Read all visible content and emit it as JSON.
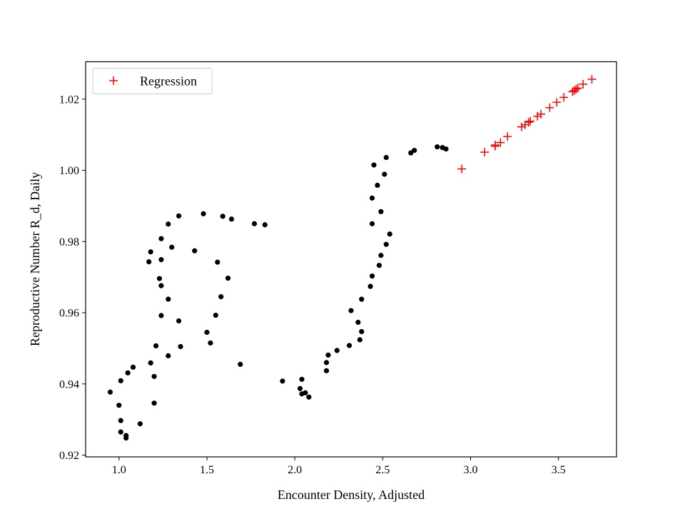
{
  "chart_data": {
    "type": "scatter",
    "title": "",
    "xlabel": "Encounter Density, Adjusted",
    "ylabel": "Reproductive Number R_d, Daily",
    "xlim": [
      0.81,
      3.83
    ],
    "ylim": [
      0.9195,
      1.0305
    ],
    "xticks": [
      1.0,
      1.5,
      2.0,
      2.5,
      3.0,
      3.5
    ],
    "xtick_labels": [
      "1.0",
      "1.5",
      "2.0",
      "2.5",
      "3.0",
      "3.5"
    ],
    "yticks": [
      0.92,
      0.94,
      0.96,
      0.98,
      1.0,
      1.02
    ],
    "ytick_labels": [
      "0.92",
      "0.94",
      "0.96",
      "0.98",
      "1.00",
      "1.02"
    ],
    "grid": false,
    "legend": {
      "position": "top-left",
      "entries": [
        "Regression"
      ]
    },
    "series": [
      {
        "marker": "circle",
        "color": "#000000",
        "points": [
          [
            0.95,
            0.9377
          ],
          [
            1.01,
            0.9409
          ],
          [
            1.05,
            0.9431
          ],
          [
            1.08,
            0.9447
          ],
          [
            1.0,
            0.934
          ],
          [
            1.01,
            0.9297
          ],
          [
            1.01,
            0.9265
          ],
          [
            1.04,
            0.9255
          ],
          [
            1.04,
            0.9248
          ],
          [
            1.12,
            0.9288
          ],
          [
            1.2,
            0.9346
          ],
          [
            1.18,
            0.9459
          ],
          [
            1.2,
            0.9421
          ],
          [
            1.21,
            0.9507
          ],
          [
            1.24,
            0.9592
          ],
          [
            1.28,
            0.9479
          ],
          [
            1.23,
            0.9696
          ],
          [
            1.24,
            0.9676
          ],
          [
            1.28,
            0.9638
          ],
          [
            1.34,
            0.9577
          ],
          [
            1.35,
            0.9505
          ],
          [
            1.17,
            0.9743
          ],
          [
            1.18,
            0.9771
          ],
          [
            1.24,
            0.9749
          ],
          [
            1.24,
            0.9808
          ],
          [
            1.3,
            0.9784
          ],
          [
            1.28,
            0.9849
          ],
          [
            1.34,
            0.9872
          ],
          [
            1.43,
            0.9774
          ],
          [
            1.48,
            0.9878
          ],
          [
            1.5,
            0.9545
          ],
          [
            1.52,
            0.9515
          ],
          [
            1.55,
            0.9593
          ],
          [
            1.56,
            0.9742
          ],
          [
            1.58,
            0.9645
          ],
          [
            1.59,
            0.9871
          ],
          [
            1.62,
            0.9697
          ],
          [
            1.64,
            0.9863
          ],
          [
            1.69,
            0.9455
          ],
          [
            1.77,
            0.985
          ],
          [
            1.83,
            0.9847
          ],
          [
            1.93,
            0.9408
          ],
          [
            2.03,
            0.9387
          ],
          [
            2.04,
            0.9413
          ],
          [
            2.04,
            0.9372
          ],
          [
            2.06,
            0.9375
          ],
          [
            2.08,
            0.9363
          ],
          [
            2.18,
            0.9437
          ],
          [
            2.18,
            0.946
          ],
          [
            2.19,
            0.9481
          ],
          [
            2.24,
            0.9494
          ],
          [
            2.31,
            0.9508
          ],
          [
            2.32,
            0.9606
          ],
          [
            2.36,
            0.9573
          ],
          [
            2.37,
            0.9524
          ],
          [
            2.38,
            0.9547
          ],
          [
            2.38,
            0.9638
          ],
          [
            2.43,
            0.9674
          ],
          [
            2.44,
            0.9703
          ],
          [
            2.48,
            0.9733
          ],
          [
            2.49,
            0.9761
          ],
          [
            2.52,
            0.9792
          ],
          [
            2.54,
            0.9821
          ],
          [
            2.44,
            0.985
          ],
          [
            2.49,
            0.9884
          ],
          [
            2.44,
            0.9922
          ],
          [
            2.47,
            0.9958
          ],
          [
            2.51,
            0.9989
          ],
          [
            2.45,
            1.0015
          ],
          [
            2.52,
            1.0036
          ],
          [
            2.66,
            1.0049
          ],
          [
            2.68,
            1.0056
          ],
          [
            2.81,
            1.0066
          ],
          [
            2.84,
            1.0064
          ],
          [
            2.86,
            1.006
          ]
        ]
      },
      {
        "name": "Regression",
        "marker": "plus",
        "color": "#ff0000",
        "points": [
          [
            2.95,
            1.0004
          ],
          [
            3.08,
            1.0051
          ],
          [
            3.14,
            1.0068
          ],
          [
            3.14,
            1.0071
          ],
          [
            3.17,
            1.0078
          ],
          [
            3.21,
            1.0095
          ],
          [
            3.29,
            1.0122
          ],
          [
            3.31,
            1.0128
          ],
          [
            3.33,
            1.0135
          ],
          [
            3.34,
            1.0138
          ],
          [
            3.38,
            1.0152
          ],
          [
            3.4,
            1.0158
          ],
          [
            3.45,
            1.0176
          ],
          [
            3.49,
            1.0191
          ],
          [
            3.53,
            1.0205
          ],
          [
            3.58,
            1.0221
          ],
          [
            3.59,
            1.0224
          ],
          [
            3.6,
            1.0228
          ],
          [
            3.61,
            1.0231
          ],
          [
            3.64,
            1.0242
          ],
          [
            3.69,
            1.0256
          ]
        ]
      }
    ]
  }
}
